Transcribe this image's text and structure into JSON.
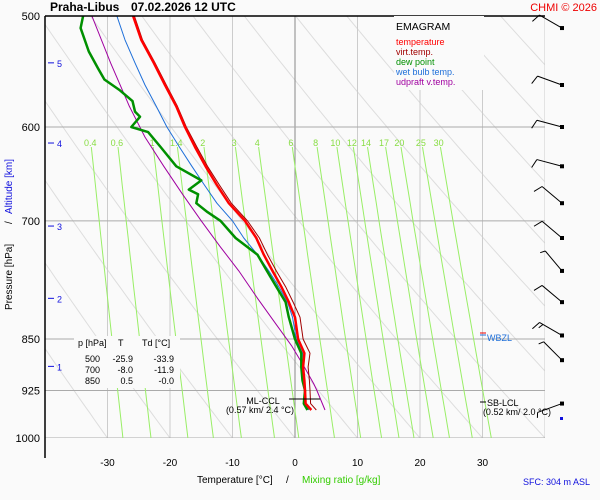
{
  "header": {
    "station": "Praha-Libus",
    "datetime": "07.02.2026 12 UTC",
    "copyright": "CHMI © 2026"
  },
  "legend": {
    "title": "EMAGRAM",
    "items": [
      {
        "label": "temperature",
        "color": "#ff0000"
      },
      {
        "label": "virt.temp.",
        "color": "#a00000"
      },
      {
        "label": "dew point",
        "color": "#009000"
      },
      {
        "label": "wet bulb temp.",
        "color": "#1e6fd9"
      },
      {
        "label": "udpraft v.temp.",
        "color": "#a000a0"
      }
    ]
  },
  "table": {
    "headers": [
      "p [hPa]",
      "T",
      "Td [°C]"
    ],
    "rows": [
      [
        "500",
        "-25.9",
        "-33.9"
      ],
      [
        "700",
        "-8.0",
        "-11.9"
      ],
      [
        "850",
        "0.5",
        "-0.0"
      ]
    ]
  },
  "annotations": {
    "ml_ccl": {
      "label": "ML-CCL",
      "detail": "(0.57 km/ 2.4 °C)"
    },
    "sb_lcl": {
      "label": "SB-LCL",
      "detail": "(0.52 km/ 2.0 °C)"
    },
    "wbzl": {
      "label": "WBZL"
    },
    "sfc": "SFC: 304 m ASL"
  },
  "colors": {
    "temperature": "#ff0000",
    "virt_temp": "#a00000",
    "dew_point": "#009000",
    "wet_bulb": "#1e6fd9",
    "updraft": "#a000a0",
    "mixing": "#99ee66",
    "mixing_label": "#88dd44",
    "altitude": "#1010dd",
    "isobar": "#aaaaaa",
    "isotherm": "#cccccc",
    "adiabat": "#dddddd"
  },
  "chart_data": {
    "type": "line",
    "title": "Praha-Libus 07.02.2026 12 UTC",
    "subtitle": "EMAGRAM",
    "xlabel": "Temperature [°C]",
    "xlabel2": "Mixing ratio [g/kg]",
    "ylabel": "Pressure [hPa]",
    "ylabel2": "Altitude [km]",
    "xlim": [
      -40,
      40
    ],
    "ylim": [
      1000,
      500
    ],
    "yscale": "log",
    "x_ticks": [
      -30,
      -20,
      -10,
      0,
      10,
      20,
      30
    ],
    "y_ticks": [
      500,
      600,
      700,
      850,
      925,
      1000
    ],
    "altitude_ticks": [
      1,
      2,
      3,
      4,
      5
    ],
    "altitude_tick_pressures": [
      889,
      795,
      706,
      616,
      540
    ],
    "mixing_ratio_labels": [
      "0.4",
      "0.6",
      "1",
      "1.4",
      "2",
      "3",
      "4",
      "6",
      "8",
      "10",
      "12",
      "14",
      "17",
      "20",
      "25",
      "30"
    ],
    "mixing_ratio_values": [
      0.4,
      0.6,
      1,
      1.4,
      2,
      3,
      4,
      6,
      8,
      10,
      12,
      14,
      17,
      20,
      25,
      30
    ],
    "series": [
      {
        "name": "temperature",
        "points": [
          [
            -25.9,
            500
          ],
          [
            -24.6,
            520
          ],
          [
            -22.6,
            540
          ],
          [
            -20.8,
            560
          ],
          [
            -19.0,
            580
          ],
          [
            -17.6,
            600
          ],
          [
            -16.0,
            620
          ],
          [
            -14.3,
            640
          ],
          [
            -12.5,
            660
          ],
          [
            -10.6,
            680
          ],
          [
            -8.0,
            700
          ],
          [
            -6.2,
            720
          ],
          [
            -5.0,
            740
          ],
          [
            -3.6,
            760
          ],
          [
            -2.2,
            780
          ],
          [
            -1.0,
            800
          ],
          [
            0.0,
            820
          ],
          [
            0.5,
            850
          ],
          [
            1.5,
            870
          ],
          [
            1.3,
            890
          ],
          [
            1.5,
            910
          ],
          [
            1.6,
            925
          ],
          [
            1.7,
            945
          ],
          [
            2.6,
            955
          ]
        ]
      },
      {
        "name": "virt.temp.",
        "points": [
          [
            -25.7,
            500
          ],
          [
            -24.4,
            520
          ],
          [
            -22.4,
            540
          ],
          [
            -20.6,
            560
          ],
          [
            -18.8,
            580
          ],
          [
            -17.4,
            600
          ],
          [
            -15.7,
            620
          ],
          [
            -14.0,
            640
          ],
          [
            -12.1,
            660
          ],
          [
            -10.2,
            680
          ],
          [
            -7.6,
            700
          ],
          [
            -5.7,
            720
          ],
          [
            -4.4,
            740
          ],
          [
            -3.0,
            760
          ],
          [
            -1.5,
            780
          ],
          [
            -0.3,
            800
          ],
          [
            0.8,
            820
          ],
          [
            1.3,
            850
          ],
          [
            2.4,
            870
          ],
          [
            2.1,
            890
          ],
          [
            2.3,
            910
          ],
          [
            2.4,
            925
          ],
          [
            2.5,
            945
          ],
          [
            3.4,
            955
          ]
        ]
      },
      {
        "name": "dew point",
        "points": [
          [
            -33.9,
            500
          ],
          [
            -34.3,
            510
          ],
          [
            -33.0,
            530
          ],
          [
            -31.5,
            545
          ],
          [
            -30.5,
            555
          ],
          [
            -28.0,
            565
          ],
          [
            -26.0,
            575
          ],
          [
            -25.6,
            585
          ],
          [
            -24.8,
            590
          ],
          [
            -26.2,
            600
          ],
          [
            -23.5,
            605
          ],
          [
            -21.5,
            620
          ],
          [
            -19.0,
            640
          ],
          [
            -15.0,
            655
          ],
          [
            -17.0,
            665
          ],
          [
            -15.5,
            670
          ],
          [
            -15.8,
            680
          ],
          [
            -14.0,
            690
          ],
          [
            -11.9,
            700
          ],
          [
            -9.5,
            720
          ],
          [
            -6.0,
            740
          ],
          [
            -4.5,
            760
          ],
          [
            -3.0,
            780
          ],
          [
            -1.5,
            800
          ],
          [
            -1.0,
            820
          ],
          [
            -0.0,
            850
          ],
          [
            1.0,
            870
          ],
          [
            1.0,
            890
          ],
          [
            1.2,
            910
          ],
          [
            1.6,
            925
          ],
          [
            1.4,
            945
          ],
          [
            2.0,
            955
          ]
        ]
      },
      {
        "name": "wet bulb temp.",
        "points": [
          [
            -28.5,
            500
          ],
          [
            -27.2,
            520
          ],
          [
            -25.6,
            540
          ],
          [
            -24.0,
            560
          ],
          [
            -22.2,
            580
          ],
          [
            -20.5,
            600
          ],
          [
            -18.5,
            620
          ],
          [
            -16.5,
            640
          ],
          [
            -14.5,
            660
          ],
          [
            -12.5,
            680
          ],
          [
            -10.0,
            700
          ],
          [
            -8.2,
            720
          ],
          [
            -6.0,
            740
          ],
          [
            -4.2,
            760
          ],
          [
            -2.6,
            780
          ],
          [
            -1.2,
            800
          ],
          [
            -0.4,
            820
          ],
          [
            0.2,
            850
          ],
          [
            1.2,
            870
          ],
          [
            1.1,
            890
          ],
          [
            1.4,
            910
          ],
          [
            1.6,
            925
          ],
          [
            1.6,
            945
          ],
          [
            2.2,
            955
          ]
        ]
      },
      {
        "name": "udpraft v.temp.",
        "points": [
          [
            -32.5,
            500
          ],
          [
            -29.5,
            540
          ],
          [
            -26.5,
            580
          ],
          [
            -24.0,
            610
          ],
          [
            -21.0,
            640
          ],
          [
            -18.0,
            670
          ],
          [
            -15.0,
            700
          ],
          [
            -12.0,
            730
          ],
          [
            -9.0,
            760
          ],
          [
            -6.0,
            795
          ],
          [
            -3.0,
            830
          ],
          [
            -0.5,
            860
          ],
          [
            1.5,
            890
          ],
          [
            3.0,
            915
          ],
          [
            3.5,
            925
          ],
          [
            4.8,
            955
          ]
        ]
      }
    ],
    "wind_barbs": [
      {
        "pressure": 510,
        "direction_deg": 300,
        "speed_kt": 10
      },
      {
        "pressure": 560,
        "direction_deg": 290,
        "speed_kt": 10
      },
      {
        "pressure": 600,
        "direction_deg": 285,
        "speed_kt": 10
      },
      {
        "pressure": 640,
        "direction_deg": 285,
        "speed_kt": 10
      },
      {
        "pressure": 680,
        "direction_deg": 310,
        "speed_kt": 10
      },
      {
        "pressure": 720,
        "direction_deg": 310,
        "speed_kt": 10
      },
      {
        "pressure": 760,
        "direction_deg": 320,
        "speed_kt": 5
      },
      {
        "pressure": 800,
        "direction_deg": 310,
        "speed_kt": 10
      },
      {
        "pressure": 845,
        "direction_deg": 300,
        "speed_kt": 15
      },
      {
        "pressure": 880,
        "direction_deg": 315,
        "speed_kt": 5
      },
      {
        "pressure": 945,
        "direction_deg": 250,
        "speed_kt": 5
      }
    ],
    "levels": [
      {
        "name": "ML-CCL",
        "pressure": 942,
        "temperature": 2.4
      },
      {
        "name": "SB-LCL",
        "pressure": 943,
        "temperature": 2.0
      },
      {
        "name": "WBZL",
        "pressure": 840
      }
    ]
  }
}
